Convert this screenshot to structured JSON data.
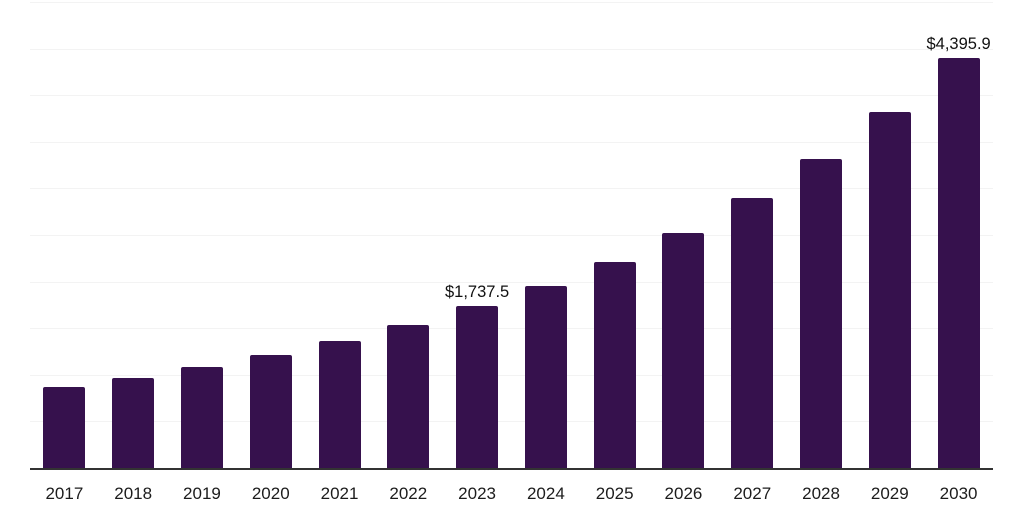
{
  "chart_data": {
    "type": "bar",
    "title": "",
    "xlabel": "",
    "ylabel": "",
    "categories": [
      "2017",
      "2018",
      "2019",
      "2020",
      "2021",
      "2022",
      "2023",
      "2024",
      "2025",
      "2026",
      "2027",
      "2028",
      "2029",
      "2030"
    ],
    "values": [
      870,
      970,
      1085,
      1215,
      1360,
      1535,
      1737.5,
      1955,
      2210,
      2520,
      2895,
      3320,
      3825,
      4395.9
    ],
    "data_labels": {
      "2023": "$1,737.5",
      "2030": "$4,395.9"
    },
    "ylim": [
      0,
      5000
    ],
    "gridline_interval": 500,
    "grid": "horizontal-only",
    "legend": "none",
    "y_tick_labels_visible": false,
    "colors": {
      "bar_fill": "#36114D",
      "axis_line": "#333333",
      "gridline": "#f3f3f3",
      "data_label_text": "#111111",
      "tick_label_text": "#1c1c1c",
      "background": "#ffffff"
    }
  }
}
